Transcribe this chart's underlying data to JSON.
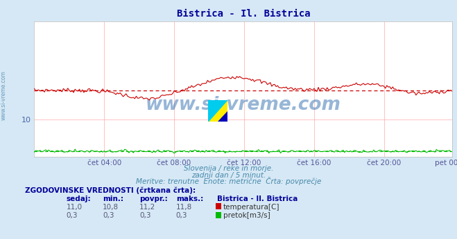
{
  "title": "Bistrica - Il. Bistrica",
  "title_color": "#000099",
  "bg_color": "#d6e8f5",
  "plot_bg_color": "#ffffff",
  "grid_color": "#ffaaaa",
  "subtitle_color": "#4488aa",
  "xticklabel_color": "#555599",
  "yticklabel_color": "#4466aa",
  "subtitle_lines": [
    "Slovenija / reke in morje.",
    "zadnji dan / 5 minut.",
    "Meritve: trenutne  Enote: metrične  Črta: povprečje"
  ],
  "xticklabels": [
    "čet 04:00",
    "čet 08:00",
    "čet 12:00",
    "čet 16:00",
    "čet 20:00",
    "pet 00:00"
  ],
  "temp_color": "#cc0000",
  "flow_color": "#00bb00",
  "temp_avg": 11.2,
  "temp_min": 10.8,
  "temp_max": 11.8,
  "flow_avg": 0.3,
  "flow_min": 0.3,
  "flow_max": 0.3,
  "temp_current": 11.0,
  "flow_current": 0.3,
  "n_points": 288,
  "watermark_text": "www.si-vreme.com",
  "watermark_color": "#1a5fa8",
  "sidewater_color": "#6699bb",
  "table_header": "ZGODOVINSKE VREDNOSTI (črtkana črta):",
  "table_col_headers": [
    "sedaj:",
    "min.:",
    "povpr.:",
    "maks.:"
  ],
  "legend_title": "Bistrica - Il. Bistrica",
  "legend_items": [
    {
      "label": "temperatura[C]",
      "color": "#cc0000"
    },
    {
      "label": "pretok[m3/s]",
      "color": "#00bb00"
    }
  ],
  "ymin": 8.5,
  "ymax": 14.0,
  "ytick": 10,
  "logo_colors": {
    "yellow": "#ffee00",
    "cyan": "#00ccee",
    "blue": "#0000bb"
  }
}
